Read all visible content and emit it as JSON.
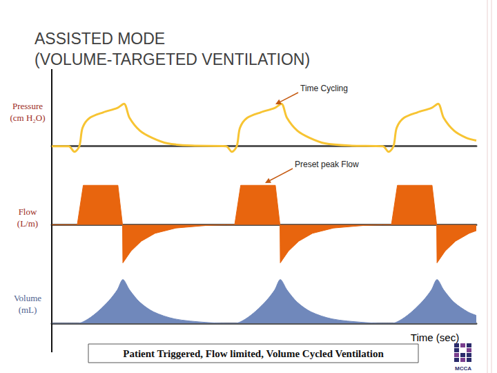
{
  "title": "ASSISTED MODE\n(VOLUME-TARGETED VENTILATION)",
  "caption": "Patient Triggered, Flow limited, Volume Cycled Ventilation",
  "logo": "MCCA",
  "chart_data": [
    {
      "type": "line",
      "ylabel": "Pressure\n(cm H₂O)",
      "annotation": "Time Cycling",
      "color": "#f7c433",
      "line_style": "smooth",
      "tick_labels": false,
      "xlim": [
        0,
        12
      ],
      "ylim": [
        -4,
        18
      ],
      "x": [
        0,
        0.48,
        0.64,
        0.78,
        0.87,
        1.07,
        1.46,
        1.85,
        2.04,
        2.2,
        2.49,
        2.83,
        3.27,
        3.96,
        4.93,
        5.09,
        5.23,
        5.32,
        5.52,
        5.91,
        6.3,
        6.49,
        6.65,
        6.94,
        7.28,
        7.72,
        8.41,
        9.36,
        9.52,
        9.66,
        9.75,
        9.95,
        10.34,
        10.73,
        10.92,
        11.08,
        11.37,
        11.71,
        12
      ],
      "values": [
        0,
        0,
        -2,
        0,
        6.5,
        10,
        12,
        13.5,
        15,
        10,
        5.5,
        3,
        1,
        0.2,
        0,
        -2,
        0,
        6.5,
        10,
        12,
        13.5,
        15,
        10,
        5.5,
        3,
        1,
        0.2,
        0,
        -2,
        0,
        6.5,
        10,
        12,
        13.5,
        15,
        10,
        5.5,
        3,
        2
      ]
    },
    {
      "type": "area",
      "ylabel": "Flow\n(L/m)",
      "annotation": "Preset peak Flow",
      "color": "#e8650e",
      "line_style": "straight",
      "tick_labels": false,
      "xlim": [
        0,
        12
      ],
      "ylim": [
        -70,
        75
      ],
      "x": [
        0,
        0.72,
        0.89,
        1.87,
        2.0,
        2.01,
        2.24,
        2.53,
        2.92,
        3.51,
        4.39,
        4.93,
        5.17,
        5.34,
        6.32,
        6.45,
        6.46,
        6.69,
        6.98,
        7.37,
        7.96,
        8.84,
        9.36,
        9.6,
        9.77,
        10.75,
        10.88,
        10.89,
        11.12,
        11.41,
        11.8,
        12
      ],
      "values": [
        0,
        0,
        60,
        60,
        0,
        -58,
        -40,
        -25,
        -13,
        -5,
        -1,
        0,
        0,
        60,
        60,
        0,
        -58,
        -40,
        -25,
        -13,
        -5,
        -1,
        0,
        0,
        60,
        60,
        0,
        -58,
        -40,
        -25,
        -13,
        -9
      ]
    },
    {
      "type": "area",
      "ylabel": "Volume\n(mL)",
      "xlabel": "Time (sec)",
      "color": "#7088bb",
      "line_style": "smooth",
      "tick_labels": false,
      "xlim": [
        0,
        12
      ],
      "ylim": [
        0,
        600
      ],
      "x": [
        0,
        0.74,
        1.03,
        1.32,
        1.62,
        1.85,
        2.01,
        2.2,
        2.49,
        2.88,
        3.47,
        4.35,
        4.93,
        5.19,
        5.48,
        5.77,
        6.07,
        6.3,
        6.46,
        6.65,
        6.94,
        7.33,
        7.92,
        8.8,
        9.36,
        9.62,
        9.91,
        10.2,
        10.5,
        10.73,
        10.89,
        11.08,
        11.37,
        11.76,
        12
      ],
      "values": [
        0,
        0,
        50,
        140,
        260,
        380,
        500,
        380,
        240,
        130,
        50,
        10,
        0,
        0,
        50,
        140,
        260,
        380,
        500,
        380,
        240,
        130,
        50,
        10,
        0,
        0,
        50,
        140,
        260,
        380,
        500,
        380,
        240,
        130,
        90
      ]
    }
  ]
}
